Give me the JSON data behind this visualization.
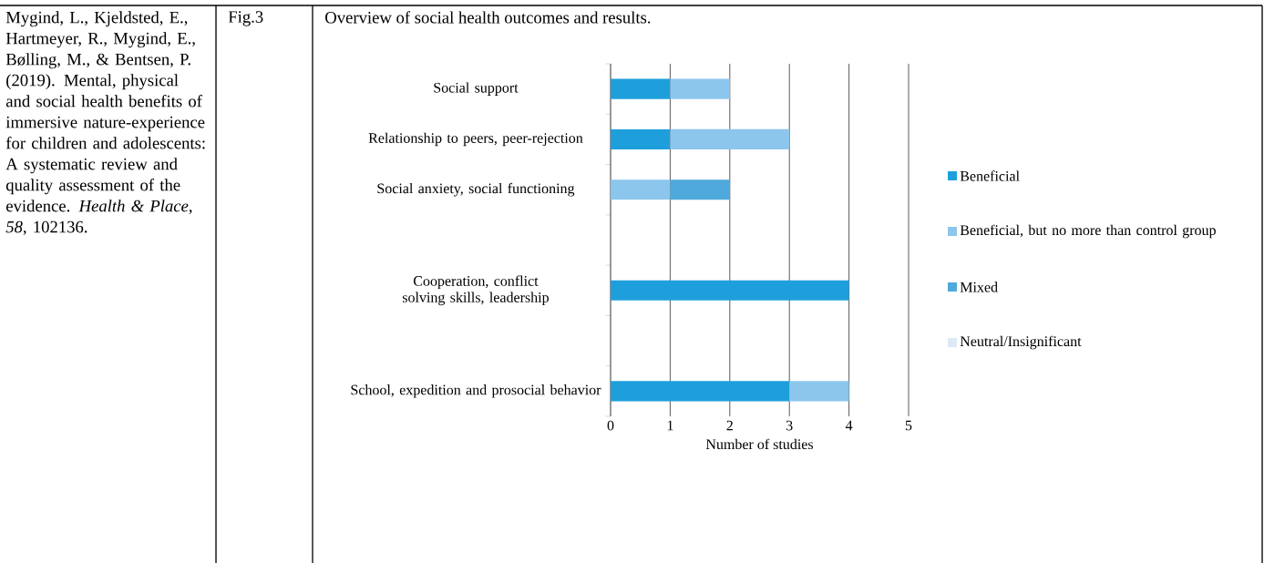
{
  "chart_data": {
    "type": "bar",
    "orientation": "horizontal",
    "stacked": true,
    "title": "Overview of social health outcomes and results.",
    "xlabel": "Number of studies",
    "categories": [
      "Social support",
      "Relationship to peers, peer-rejection",
      "Social anxiety, social functioning",
      null,
      "Cooperation, conflict solving skills, leadership",
      null,
      "School, expedition and prosocial behavior"
    ],
    "series": [
      {
        "name": "Beneficial",
        "color": "#1e9fdc",
        "values": [
          1,
          1,
          null,
          null,
          4,
          null,
          3
        ]
      },
      {
        "name": "Beneficial, but no more than control group",
        "color": "#8cc6ec",
        "values": [
          1,
          2,
          1,
          null,
          null,
          null,
          1
        ]
      },
      {
        "name": "Mixed",
        "color": "#4fa9dc",
        "values": [
          null,
          null,
          1,
          null,
          null,
          null,
          null
        ]
      },
      {
        "name": "Neutral/Insignificant",
        "color": "#dde9f5",
        "values": [
          null,
          null,
          null,
          null,
          null,
          null,
          null
        ]
      }
    ],
    "xlim": [
      0,
      5
    ],
    "xticks": [
      0,
      1,
      2,
      3,
      4,
      5
    ],
    "grid": "x",
    "legend": "right",
    "annotations": [
      "Mygind, L., Kjeldsted, E., Hartmeyer, R., Mygind, E., Bølling, M., & Bentsen, P. (2019). Mental, physical and social health benefits of immersive nature-experience for children and adolescents: A systematic review and quality assessment of the evidence. *Health & Place*, *58*, 102136.",
      "Fig.3"
    ]
  }
}
